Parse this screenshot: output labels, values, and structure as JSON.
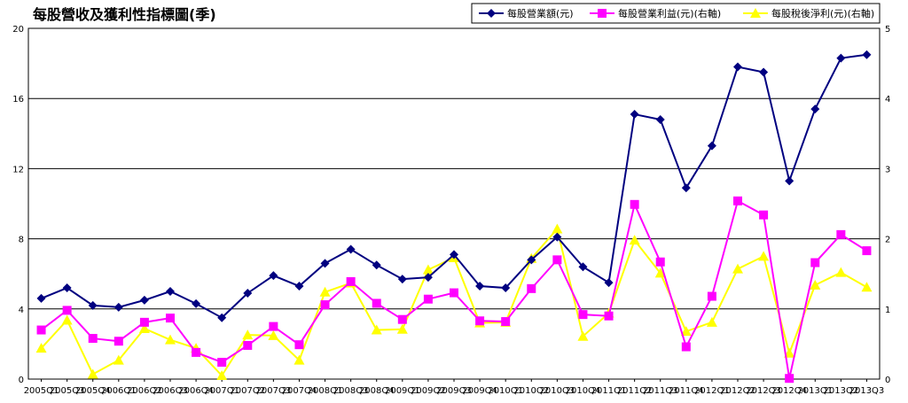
{
  "chart_data": {
    "type": "line",
    "title": "每股營收及獲利性指標圖(季)",
    "categories": [
      "2005Q1",
      "2005Q3",
      "2005Q4",
      "2006Q1",
      "2006Q2",
      "2006Q3",
      "2006Q4",
      "2007Q1",
      "2007Q2",
      "2007Q3",
      "2007Q4",
      "2008Q1",
      "2008Q3",
      "2008Q4",
      "2009Q1",
      "2009Q2",
      "2009Q3",
      "2009Q4",
      "2010Q1",
      "2010Q2",
      "2010Q3",
      "2010Q4",
      "2011Q1",
      "2011Q2",
      "2011Q3",
      "2011Q4",
      "2012Q1",
      "2012Q2",
      "2012Q3",
      "2012Q4",
      "2013Q1",
      "2013Q2",
      "2013Q3"
    ],
    "left_axis": {
      "ylim": [
        0,
        20
      ],
      "ticks": [
        "0",
        "4",
        "8",
        "12",
        "16",
        "20"
      ]
    },
    "right_axis": {
      "ylim": [
        0,
        5
      ],
      "ticks": [
        "0",
        "1",
        "2",
        "3",
        "4",
        "5"
      ]
    },
    "grid": true,
    "legend_position": "top-right",
    "series": [
      {
        "name": "每股營業額(元)",
        "axis": "left",
        "color": "#000080",
        "marker": "diamond",
        "values": [
          4.6,
          5.2,
          4.2,
          4.1,
          4.5,
          5.0,
          4.3,
          3.5,
          4.9,
          5.9,
          5.3,
          6.6,
          7.4,
          6.5,
          5.7,
          5.8,
          7.1,
          5.3,
          5.2,
          6.8,
          8.1,
          6.4,
          5.5,
          15.1,
          14.8,
          10.9,
          13.3,
          17.8,
          17.5,
          11.3,
          15.4,
          18.3,
          18.5
        ]
      },
      {
        "name": "每股營業利益(元)(右軸)",
        "axis": "right",
        "color": "#ff00ff",
        "marker": "square",
        "values": [
          0.7,
          0.98,
          0.58,
          0.54,
          0.81,
          0.87,
          0.38,
          0.24,
          0.48,
          0.75,
          0.49,
          1.06,
          1.39,
          1.08,
          0.85,
          1.14,
          1.23,
          0.83,
          0.82,
          1.29,
          1.7,
          0.92,
          0.9,
          2.49,
          1.67,
          0.46,
          1.18,
          2.54,
          2.34,
          0.01,
          1.66,
          2.06,
          1.83
        ]
      },
      {
        "name": "每股稅後淨利(元)(右軸)",
        "axis": "right",
        "color": "#ffff00",
        "marker": "triangle",
        "values": [
          0.44,
          0.84,
          0.07,
          0.27,
          0.72,
          0.56,
          0.44,
          0.05,
          0.63,
          0.62,
          0.27,
          1.24,
          1.37,
          0.7,
          0.71,
          1.56,
          1.73,
          0.8,
          0.81,
          1.72,
          2.14,
          0.61,
          0.94,
          1.98,
          1.51,
          0.68,
          0.81,
          1.57,
          1.75,
          0.37,
          1.34,
          1.52,
          1.31
        ]
      }
    ]
  }
}
